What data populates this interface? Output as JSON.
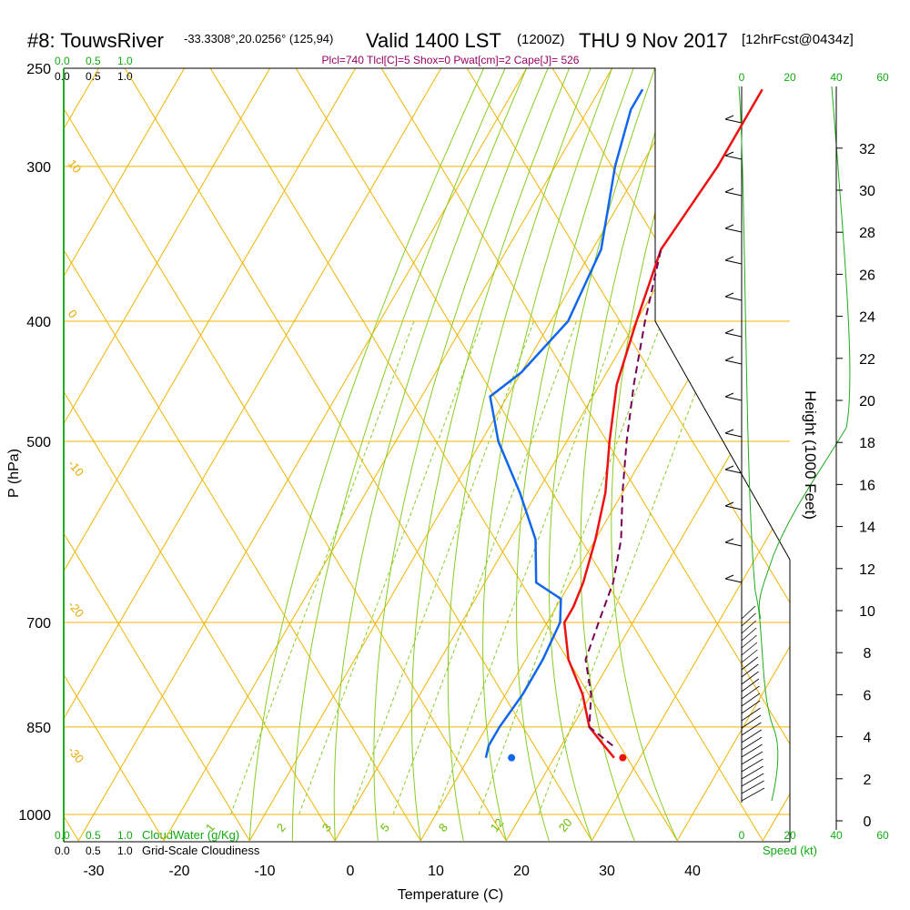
{
  "header": {
    "station": "#8: TouwsRiver",
    "location": "-33.3308°,20.0256° (125,94)",
    "valid": "Valid 1400 LST",
    "zulu": "(1200Z)",
    "date": "THU 9 Nov 2017",
    "forecast": "[12hrFcst@0434z]",
    "params": "Plcl=740 Tlcl[C]=5 Shox=0 Pwat[cm]=2 Cape[J]= 526"
  },
  "legend": {
    "cloud_scale_green": [
      "0.0",
      "0.5",
      "1.0"
    ],
    "cloud_scale_black": [
      "0.0",
      "0.5",
      "1.0"
    ],
    "cloudwater_label": "CloudWater (g/Kg)",
    "cloudiness_label": "Grid-Scale Cloudiness",
    "speed_label": "Speed (kt)",
    "speed_ticks_top": [
      "0",
      "20",
      "40",
      "60"
    ],
    "speed_ticks_bottom": [
      "0",
      "20",
      "40",
      "60"
    ]
  },
  "colors": {
    "isotherm": "#f0b400",
    "mixing_ratio": "#88cc22",
    "temperature": "#ee1111",
    "dewpoint": "#1166ee",
    "parcel": "#770055",
    "wind_profile": "#22aa22"
  },
  "chart_data": {
    "type": "skew-t",
    "title": "#8: TouwsRiver",
    "xlabel": "Temperature (C)",
    "ylabel": "P (hPa)",
    "y2label": "Height (1000 Feet)",
    "x_ticks": [
      "-30",
      "-20",
      "-10",
      "0",
      "10",
      "20",
      "30",
      "40"
    ],
    "p_ticks": [
      "250",
      "300",
      "400",
      "500",
      "700",
      "850",
      "1000"
    ],
    "height_ticks": [
      "0",
      "2",
      "4",
      "6",
      "8",
      "10",
      "12",
      "14",
      "16",
      "18",
      "20",
      "22",
      "24",
      "26",
      "28",
      "30",
      "32"
    ],
    "isotherm_labels": [
      "0",
      "10",
      "20",
      "30"
    ],
    "dry_adiabat_labels": [
      "10",
      "0",
      "-10",
      "-20",
      "-30"
    ],
    "mixing_ratio_labels": [
      "1",
      "2",
      "3",
      "5",
      "8",
      "12",
      "20"
    ],
    "surface_temp_c": 28,
    "surface_dewpoint_c": 15,
    "series": [
      {
        "name": "Temperature",
        "points": [
          [
            27,
            900
          ],
          [
            25,
            880
          ],
          [
            22,
            850
          ],
          [
            19,
            800
          ],
          [
            15,
            750
          ],
          [
            12,
            700
          ],
          [
            12,
            680
          ],
          [
            11.5,
            650
          ],
          [
            10,
            600
          ],
          [
            8,
            550
          ],
          [
            5,
            500
          ],
          [
            2,
            450
          ],
          [
            0,
            400
          ],
          [
            -2,
            350
          ],
          [
            -1,
            300
          ],
          [
            -1,
            260
          ]
        ]
      },
      {
        "name": "Dewpoint",
        "points": [
          [
            12,
            900
          ],
          [
            11.5,
            880
          ],
          [
            11.5,
            850
          ],
          [
            12,
            800
          ],
          [
            12,
            750
          ],
          [
            11.5,
            700
          ],
          [
            10,
            670
          ],
          [
            6,
            650
          ],
          [
            3,
            600
          ],
          [
            -2,
            550
          ],
          [
            -8,
            500
          ],
          [
            -12,
            460
          ],
          [
            -10,
            440
          ],
          [
            -8,
            400
          ],
          [
            -9,
            350
          ],
          [
            -13,
            300
          ],
          [
            -15,
            270
          ],
          [
            -15,
            260
          ]
        ]
      },
      {
        "name": "Parcel",
        "points": [
          [
            26,
            880
          ],
          [
            22,
            850
          ],
          [
            20,
            800
          ],
          [
            17,
            750
          ],
          [
            16,
            700
          ],
          [
            15,
            650
          ],
          [
            13,
            600
          ],
          [
            10,
            550
          ],
          [
            7,
            500
          ],
          [
            4,
            450
          ],
          [
            1,
            400
          ],
          [
            -2,
            350
          ]
        ]
      }
    ]
  }
}
